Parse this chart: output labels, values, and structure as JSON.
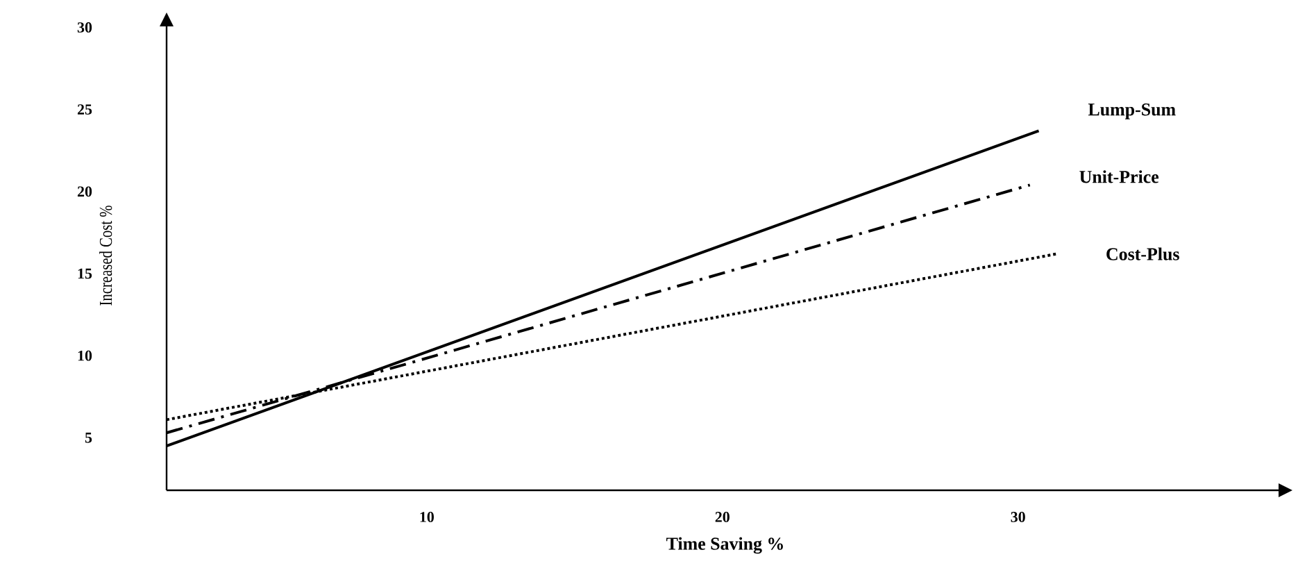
{
  "chart_data": {
    "type": "line",
    "xlabel": "Time Saving %",
    "ylabel": "Increased Cost %",
    "xlim": [
      1.2,
      39
    ],
    "ylim": [
      1.8,
      30.4
    ],
    "xticks": [
      10,
      20,
      30
    ],
    "yticks": [
      5,
      10,
      15,
      20,
      25,
      30
    ],
    "grid": false,
    "legend": false,
    "marker": "none",
    "series": [
      {
        "name": "Lump-Sum",
        "color": "#000000",
        "line_style": "solid",
        "x": [
          1.2,
          30.7
        ],
        "values": [
          4.5,
          23.7
        ]
      },
      {
        "name": "Unit-Price",
        "color": "#000000",
        "line_style": "dashdot",
        "x": [
          1.2,
          30.4
        ],
        "values": [
          5.3,
          20.4
        ]
      },
      {
        "name": "Cost-Plus",
        "color": "#000000",
        "line_style": "dotted",
        "x": [
          1.2,
          31.3
        ],
        "values": [
          6.1,
          16.2
        ]
      }
    ]
  }
}
